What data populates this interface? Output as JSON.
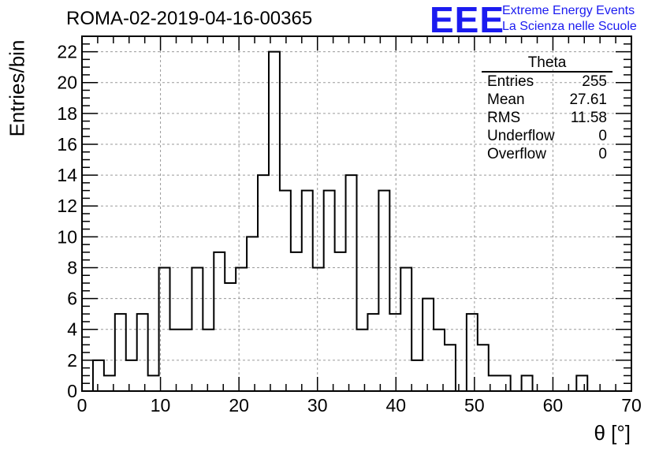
{
  "run_title": "ROMA-02-2019-04-16-00365",
  "brand": {
    "logo": "EEE",
    "line1": "Extreme Energy Events",
    "line2": "La Scienza nelle Scuole",
    "color": "#1b1bf0"
  },
  "stats": {
    "title": "Theta",
    "rows": [
      {
        "label": "Entries",
        "value": "255"
      },
      {
        "label": "Mean",
        "value": "27.61"
      },
      {
        "label": "RMS",
        "value": "11.58"
      },
      {
        "label": "Underflow",
        "value": "0"
      },
      {
        "label": "Overflow",
        "value": "0"
      }
    ]
  },
  "chart_data": {
    "type": "histogram",
    "title": "ROMA-02-2019-04-16-00365",
    "xlabel": "θ [°]",
    "ylabel": "Entries/bin",
    "xlim": [
      0,
      70
    ],
    "ylim": [
      0,
      23
    ],
    "x_ticks": [
      0,
      10,
      20,
      30,
      40,
      50,
      60,
      70
    ],
    "y_ticks": [
      0,
      2,
      4,
      6,
      8,
      10,
      12,
      14,
      16,
      18,
      20,
      22
    ],
    "grid": true,
    "bin_width": 1.4,
    "bin_start": 0,
    "values": [
      0,
      2,
      1,
      5,
      2,
      5,
      1,
      8,
      4,
      4,
      8,
      4,
      9,
      7,
      8,
      10,
      14,
      22,
      13,
      9,
      13,
      8,
      13,
      9,
      14,
      4,
      5,
      13,
      5,
      8,
      2,
      6,
      4,
      3,
      0,
      5,
      3,
      1,
      1,
      0,
      1,
      0,
      0,
      0,
      0,
      1,
      0,
      0,
      0,
      0
    ]
  }
}
